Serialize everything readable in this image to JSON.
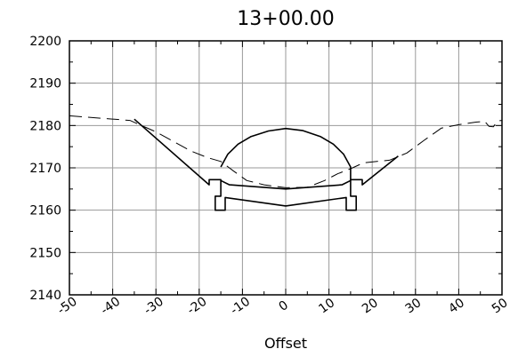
{
  "chart_data": {
    "type": "line",
    "title": "13+00.00",
    "xlabel": "Offset",
    "ylabel": "",
    "xlim": [
      -50,
      50
    ],
    "ylim": [
      2140,
      2200
    ],
    "x_ticks": [
      "-50",
      "-40",
      "-30",
      "-20",
      "-10",
      "0",
      "10",
      "20",
      "30",
      "40",
      "50"
    ],
    "y_ticks": [
      "2140",
      "2150",
      "2160",
      "2170",
      "2180",
      "2190",
      "2200"
    ],
    "grid": true,
    "series": [
      {
        "style": "dashed",
        "points": [
          [
            -50,
            2182.3
          ],
          [
            -36,
            2181.2
          ],
          [
            -30,
            2178.5
          ],
          [
            -22,
            2174
          ],
          [
            -18,
            2172.4
          ],
          [
            -15,
            2171.5
          ],
          [
            -12,
            2169.2
          ],
          [
            -9,
            2167
          ],
          [
            -5,
            2166
          ],
          [
            0,
            2165.3
          ],
          [
            5,
            2165.4
          ],
          [
            9,
            2167
          ],
          [
            12,
            2168.6
          ],
          [
            15,
            2169.8
          ],
          [
            18,
            2171.2
          ],
          [
            24,
            2171.8
          ],
          [
            28,
            2173.5
          ],
          [
            32,
            2176.5
          ],
          [
            36,
            2179.4
          ],
          [
            40,
            2180.2
          ],
          [
            44,
            2180.8
          ],
          [
            46,
            2181
          ],
          [
            47,
            2179.8
          ],
          [
            48,
            2179.7
          ],
          [
            49,
            2181.1
          ],
          [
            50,
            2181.2
          ]
        ]
      },
      {
        "style": "solid",
        "points": [
          [
            -35,
            2181.5
          ],
          [
            -17.7,
            2166
          ],
          [
            -17.7,
            2167.2
          ],
          [
            -15,
            2167.2
          ],
          [
            -15,
            2163.3
          ],
          [
            -16.3,
            2163.3
          ],
          [
            -16.3,
            2160
          ],
          [
            -14,
            2160
          ],
          [
            -14,
            2163
          ],
          [
            0,
            2161
          ],
          [
            14,
            2163
          ],
          [
            14,
            2160
          ],
          [
            16.3,
            2160
          ],
          [
            16.3,
            2163.3
          ],
          [
            15,
            2163.3
          ],
          [
            15,
            2167.2
          ],
          [
            17.7,
            2167.2
          ],
          [
            17.7,
            2166
          ],
          [
            26,
            2172.8
          ]
        ]
      },
      {
        "style": "solid",
        "points": [
          [
            -15,
            2167
          ],
          [
            -13,
            2166
          ],
          [
            0,
            2165
          ],
          [
            13,
            2166
          ],
          [
            15,
            2167
          ]
        ]
      },
      {
        "style": "solid",
        "points": [
          [
            -15,
            2170.2
          ],
          [
            -13.4,
            2173.2
          ],
          [
            -11,
            2175.6
          ],
          [
            -8,
            2177.4
          ],
          [
            -4,
            2178.7
          ],
          [
            0,
            2179.3
          ],
          [
            4,
            2178.8
          ],
          [
            8,
            2177.4
          ],
          [
            11,
            2175.6
          ],
          [
            13.4,
            2173.2
          ],
          [
            15,
            2170.2
          ],
          [
            15,
            2167
          ]
        ]
      }
    ]
  }
}
